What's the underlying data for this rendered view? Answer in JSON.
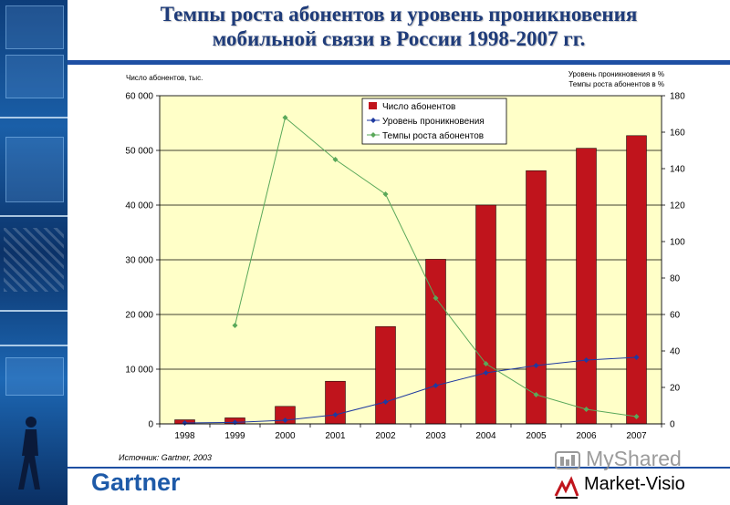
{
  "title": {
    "line1": "Темпы роста абонентов и уровень проникновения",
    "line2": "мобильной связи в России 1998-2007 гг."
  },
  "source_note": "Источник: Gartner, 2003",
  "logos": {
    "gartner": "Gartner",
    "market_visio": "Market-Visio",
    "watermark": "MyShared"
  },
  "colors": {
    "bar": "#c0141c",
    "penetration": "#1f3aa0",
    "growth": "#5aa85a",
    "plot_bg": "#ffffc8",
    "title": "#1f3c7a"
  },
  "chart_data": {
    "type": "bar",
    "categories": [
      "1998",
      "1999",
      "2000",
      "2001",
      "2002",
      "2003",
      "2004",
      "2005",
      "2006",
      "2007"
    ],
    "y_left": {
      "label": "Число абонентов, тыс.",
      "ylim": [
        0,
        60000
      ],
      "ticks": [
        "0",
        "10 000",
        "20 000",
        "30 000",
        "40 000",
        "50 000",
        "60 000"
      ]
    },
    "y_right": {
      "label_line1": "Уровень проникновения в %",
      "label_line2": "Темпы роста абонентов в %",
      "ylim": [
        0,
        180
      ],
      "ticks": [
        "0",
        "20",
        "40",
        "60",
        "80",
        "100",
        "120",
        "140",
        "160",
        "180"
      ]
    },
    "legend_position": "top-center",
    "grid": true,
    "series": [
      {
        "name": "Число абонентов",
        "kind": "bar",
        "axis": "left",
        "values": [
          750,
          1100,
          3200,
          7800,
          17800,
          30100,
          40000,
          46300,
          50400,
          52700
        ]
      },
      {
        "name": "Уровень проникновения",
        "kind": "line",
        "axis": "right",
        "values": [
          0.5,
          0.8,
          2,
          5,
          12,
          21,
          28,
          32,
          35,
          36.5
        ]
      },
      {
        "name": "Темпы роста абонентов",
        "kind": "line",
        "axis": "right",
        "values": [
          null,
          54,
          168,
          145,
          126,
          69,
          33,
          16,
          8,
          4
        ]
      }
    ]
  }
}
